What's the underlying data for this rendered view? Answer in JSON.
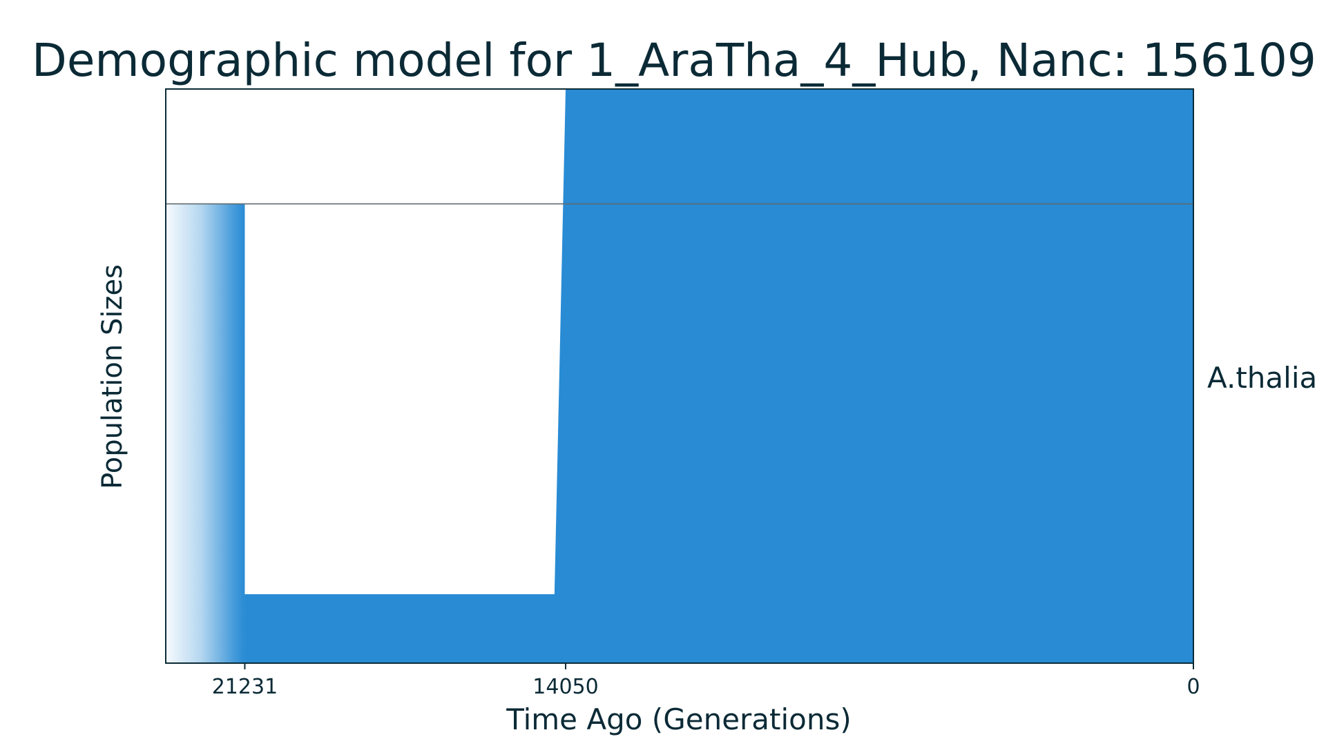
{
  "chart_data": {
    "type": "area",
    "title": "Demographic model for 1_AraTha_4_Hub, Nanc: 156109",
    "xlabel": "Time Ago (Generations)",
    "ylabel": "Population Sizes",
    "x_direction": "reversed",
    "xlim": [
      23000,
      0
    ],
    "ticks": [
      21231,
      14050,
      0
    ],
    "tick_labels": [
      "21231",
      "14050",
      "0"
    ],
    "population_label": "A.thalia",
    "reference_line": 1.0,
    "ylim": [
      0,
      1.25
    ],
    "series": [
      {
        "name": "A.thalia",
        "size_profile": [
          {
            "x": 23000,
            "y": 0.0,
            "note": ""
          },
          {
            "x": 21231,
            "y": 1.0
          },
          {
            "x": 21231,
            "y": 0.15
          },
          {
            "x": 14300,
            "y": 0.15
          },
          {
            "x": 14050,
            "y": 1.25
          },
          {
            "x": 0,
            "y": 1.25
          }
        ]
      }
    ],
    "colors": {
      "fill": "#288bd4",
      "text": "#0b2a36",
      "axis": "#0b2a36",
      "refline": "#5f6b70"
    }
  }
}
